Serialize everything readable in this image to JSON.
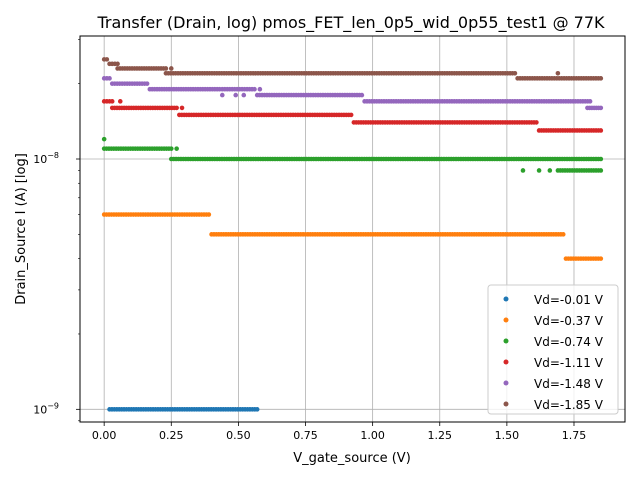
{
  "chart_data": {
    "type": "scatter",
    "title": "Transfer (Drain, log) pmos_FET_len_0p5_wid_0p55_test1 @ 77K",
    "xlabel": "V_gate_source (V)",
    "ylabel": "Drain_Source I (A) [log]",
    "xlim": [
      -0.09,
      1.94
    ],
    "ylim": [
      8.9e-10,
      3.1e-08
    ],
    "yscale": "log",
    "grid": true,
    "legend_position": "lower right",
    "x_ticks": [
      {
        "value": 0.0,
        "label": "0.00"
      },
      {
        "value": 0.25,
        "label": "0.25"
      },
      {
        "value": 0.5,
        "label": "0.50"
      },
      {
        "value": 0.75,
        "label": "0.75"
      },
      {
        "value": 1.0,
        "label": "1.00"
      },
      {
        "value": 1.25,
        "label": "1.25"
      },
      {
        "value": 1.5,
        "label": "1.50"
      },
      {
        "value": 1.75,
        "label": "1.75"
      }
    ],
    "y_ticks": [
      {
        "value": 1e-09,
        "label_base": "10",
        "label_exp": "−9"
      },
      {
        "value": 1e-08,
        "label_base": "10",
        "label_exp": "−8"
      }
    ],
    "series": [
      {
        "name": "Vd=-0.01 V",
        "color": "#1f77b4",
        "segments": [
          {
            "x_start": 0.02,
            "x_end": 0.57,
            "y": 1e-09
          }
        ],
        "points": []
      },
      {
        "name": "Vd=-0.37 V",
        "color": "#ff7f0e",
        "segments": [
          {
            "x_start": 0.0,
            "x_end": 0.39,
            "y": 6e-09
          },
          {
            "x_start": 0.4,
            "x_end": 1.71,
            "y": 5e-09
          },
          {
            "x_start": 1.72,
            "x_end": 1.85,
            "y": 4e-09
          }
        ],
        "points": []
      },
      {
        "name": "Vd=-0.74 V",
        "color": "#2ca02c",
        "segments": [
          {
            "x_start": 0.0,
            "x_end": 0.25,
            "y": 1.1e-08
          },
          {
            "x_start": 0.25,
            "x_end": 1.85,
            "y": 1e-08
          },
          {
            "x_start": 1.69,
            "x_end": 1.85,
            "y": 9e-09
          }
        ],
        "points": [
          {
            "x": 0.0,
            "y": 1.2e-08
          },
          {
            "x": 0.27,
            "y": 1.1e-08
          },
          {
            "x": 1.56,
            "y": 9e-09
          },
          {
            "x": 1.62,
            "y": 9e-09
          },
          {
            "x": 1.66,
            "y": 9e-09
          }
        ]
      },
      {
        "name": "Vd=-1.11 V",
        "color": "#d62728",
        "segments": [
          {
            "x_start": 0.0,
            "x_end": 0.03,
            "y": 1.7e-08
          },
          {
            "x_start": 0.03,
            "x_end": 0.27,
            "y": 1.6e-08
          },
          {
            "x_start": 0.28,
            "x_end": 0.92,
            "y": 1.5e-08
          },
          {
            "x_start": 0.93,
            "x_end": 1.61,
            "y": 1.4e-08
          },
          {
            "x_start": 1.62,
            "x_end": 1.85,
            "y": 1.3e-08
          }
        ],
        "points": [
          {
            "x": 0.06,
            "y": 1.7e-08
          },
          {
            "x": 0.29,
            "y": 1.6e-08
          }
        ]
      },
      {
        "name": "Vd=-1.48 V",
        "color": "#9467bd",
        "segments": [
          {
            "x_start": 0.0,
            "x_end": 0.02,
            "y": 2.1e-08
          },
          {
            "x_start": 0.03,
            "x_end": 0.16,
            "y": 2e-08
          },
          {
            "x_start": 0.17,
            "x_end": 0.43,
            "y": 1.9e-08
          },
          {
            "x_start": 0.44,
            "x_end": 0.56,
            "y": 1.9e-08
          },
          {
            "x_start": 0.57,
            "x_end": 0.96,
            "y": 1.8e-08
          },
          {
            "x_start": 0.97,
            "x_end": 1.81,
            "y": 1.7e-08
          },
          {
            "x_start": 1.8,
            "x_end": 1.85,
            "y": 1.6e-08
          }
        ],
        "points": [
          {
            "x": 0.44,
            "y": 1.8e-08
          },
          {
            "x": 0.49,
            "y": 1.8e-08
          },
          {
            "x": 0.52,
            "y": 1.8e-08
          },
          {
            "x": 0.58,
            "y": 1.9e-08
          }
        ]
      },
      {
        "name": "Vd=-1.85 V",
        "color": "#8c564b",
        "segments": [
          {
            "x_start": 0.0,
            "x_end": 0.01,
            "y": 2.5e-08
          },
          {
            "x_start": 0.02,
            "x_end": 0.05,
            "y": 2.4e-08
          },
          {
            "x_start": 0.05,
            "x_end": 0.23,
            "y": 2.3e-08
          },
          {
            "x_start": 0.23,
            "x_end": 1.53,
            "y": 2.2e-08
          },
          {
            "x_start": 1.54,
            "x_end": 1.85,
            "y": 2.1e-08
          }
        ],
        "points": [
          {
            "x": 0.25,
            "y": 2.3e-08
          },
          {
            "x": 1.69,
            "y": 2.2e-08
          }
        ]
      }
    ]
  }
}
